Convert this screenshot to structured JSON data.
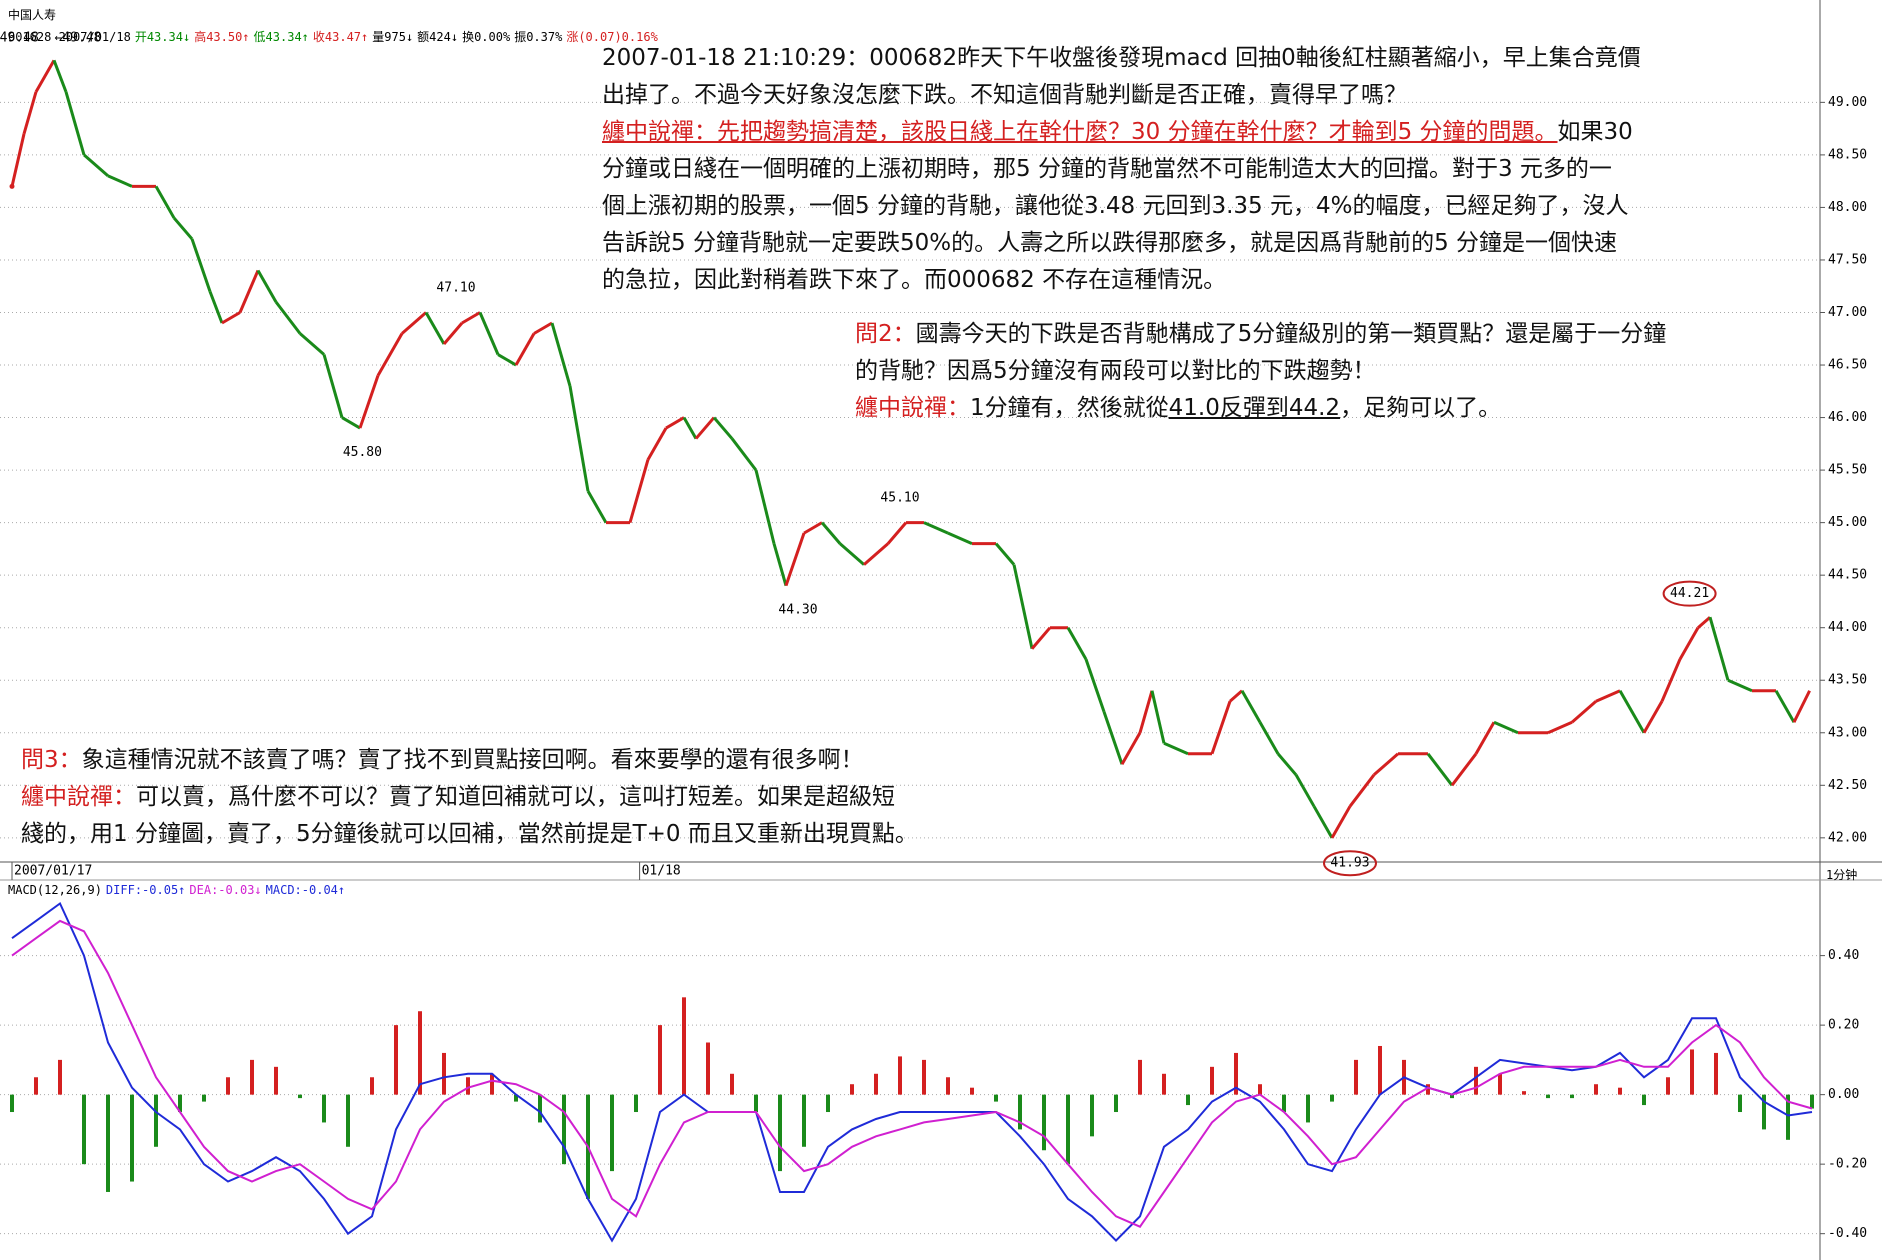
{
  "header": {
    "name": "中国人寿",
    "info": [
      {
        "text": "601628 2007/01/18",
        "color": "#000"
      },
      {
        "text": "开43.34↓",
        "color": "#008800"
      },
      {
        "text": "高43.50↑",
        "color": "#d42020"
      },
      {
        "text": "低43.34↑",
        "color": "#008800"
      },
      {
        "text": "收43.47↑",
        "color": "#d42020"
      },
      {
        "text": "量975↓",
        "color": "#000"
      },
      {
        "text": "额424↓",
        "color": "#000"
      },
      {
        "text": "换0.00%",
        "color": "#000"
      },
      {
        "text": "振0.37%",
        "color": "#000"
      },
      {
        "text": "涨(0.07)0.16%",
        "color": "#d42020"
      }
    ],
    "period": "1分钟"
  },
  "notes": [
    {
      "lines": [
        [
          "2007-01-18 21:10:29：000682昨天下午收盤後發現macd 回抽0軸後紅柱顯著縮小，早上集合竟價"
        ],
        [
          "出掉了。不過今天好象沒怎麼下跌。不知這個背馳判斷是否正確，賣得早了嗎？"
        ],
        [
          "纏中說禪：先把趨勢搞清楚，該股日綫上在幹什麼？30 分鐘在幹什麼？才輪到5 分鐘的問題。",
          "如果30"
        ],
        [
          "分鐘或日綫在一個明確的上漲初期時，那5 分鐘的背馳當然不可能制造太大的回擋。對于3 元多的一"
        ],
        [
          "個上漲初期的股票，一個5 分鐘的背馳，讓他從3.48 元回到3.35 元，4%的幅度，已經足夠了，沒人"
        ],
        [
          "告訴說5 分鐘背馳就一定要跌50%的。人壽之所以跌得那麼多，就是因爲背馳前的5 分鐘是一個快速"
        ],
        [
          "的急拉，因此對稍着跌下來了。而000682 不存在這種情況。"
        ]
      ]
    },
    {
      "lines": [
        [
          "問2：",
          "國壽今天的下跌是否背馳構成了5分鐘級別的第一類買點？還是屬于一分鐘"
        ],
        [
          "的背馳？因爲5分鐘沒有兩段可以對比的下跌趨勢！"
        ],
        [
          "纏中說禪：",
          "1分鐘有，然後就從",
          "41.0反彈到44.2",
          "，足夠可以了。"
        ]
      ]
    },
    {
      "lines": [
        [
          "問3：",
          "象這種情況就不該賣了嗎？賣了找不到買點接回啊。看來要學的還有很多啊！"
        ],
        [
          "纏中說禪：",
          "可以賣，爲什麼不可以？賣了知道回補就可以，這叫打短差。如果是超級短"
        ],
        [
          "綫的，用1 分鐘圖，賣了，5分鐘後就可以回補，當然前提是T+0 而且又重新出現買點。"
        ]
      ]
    }
  ],
  "chart_data": [
    {
      "type": "candle-line",
      "up_color": "#d42020",
      "down_color": "#1a8a1a",
      "x": [
        0,
        10,
        20,
        35,
        45,
        60,
        80,
        100,
        120,
        135,
        150,
        165,
        175,
        190,
        205,
        220,
        240,
        260,
        275,
        290,
        305,
        325,
        345,
        360,
        375,
        390,
        405,
        420,
        435,
        450,
        465,
        480,
        495,
        515,
        530,
        545,
        560,
        570,
        585,
        600,
        620,
        635,
        645,
        660,
        675,
        690,
        710,
        730,
        745,
        760,
        780,
        800,
        820,
        835,
        850,
        865,
        880,
        895,
        910,
        925,
        940,
        950,
        960,
        980,
        1000,
        1015,
        1025,
        1040,
        1055,
        1070,
        1085,
        1100,
        1115,
        1135,
        1155,
        1180,
        1200,
        1220,
        1235,
        1255,
        1280,
        1300,
        1320,
        1340,
        1360,
        1375,
        1390,
        1405,
        1415,
        1430,
        1450,
        1470,
        1485,
        1498
      ],
      "values": [
        48.2,
        48.7,
        49.1,
        49.4,
        49.1,
        48.5,
        48.3,
        48.2,
        48.2,
        47.9,
        47.7,
        47.2,
        46.9,
        47.0,
        47.4,
        47.1,
        46.8,
        46.6,
        46.0,
        45.9,
        46.4,
        46.8,
        47.0,
        46.7,
        46.9,
        47.0,
        46.6,
        46.5,
        46.8,
        46.9,
        46.3,
        45.3,
        45.0,
        45.0,
        45.6,
        45.9,
        46.0,
        45.8,
        46.0,
        45.8,
        45.5,
        44.8,
        44.4,
        44.9,
        45.0,
        44.8,
        44.6,
        44.8,
        45.0,
        45.0,
        44.9,
        44.8,
        44.8,
        44.6,
        43.8,
        44.0,
        44.0,
        43.7,
        43.2,
        42.7,
        43.0,
        43.4,
        42.9,
        42.8,
        42.8,
        43.3,
        43.4,
        43.1,
        42.8,
        42.6,
        42.3,
        42.0,
        42.3,
        42.6,
        42.8,
        42.8,
        42.5,
        42.8,
        43.1,
        43.0,
        43.0,
        43.1,
        43.3,
        43.4,
        43.0,
        43.3,
        43.7,
        44.0,
        44.1,
        43.5,
        43.4,
        43.4,
        43.1,
        43.4
      ],
      "xlim": [
        0,
        1500
      ],
      "ylim": [
        41.77,
        49.86
      ],
      "xticks": [
        {
          "value": 0,
          "label": "2007/01/17"
        },
        {
          "value": 523,
          "label": "01/18"
        }
      ],
      "yticks": [
        {
          "value": 42,
          "label": "42.00"
        },
        {
          "value": 42.5,
          "label": "42.50"
        },
        {
          "value": 43,
          "label": "43.00"
        },
        {
          "value": 43.5,
          "label": "43.50"
        },
        {
          "value": 44,
          "label": "44.00"
        },
        {
          "value": 44.5,
          "label": "44.50"
        },
        {
          "value": 45,
          "label": "45.00"
        },
        {
          "value": 45.5,
          "label": "45.50"
        },
        {
          "value": 46,
          "label": "46.00"
        },
        {
          "value": 46.5,
          "label": "46.50"
        },
        {
          "value": 47,
          "label": "47.00"
        },
        {
          "value": 47.5,
          "label": "47.50"
        },
        {
          "value": 48,
          "label": "48.00"
        },
        {
          "value": 48.5,
          "label": "48.50"
        },
        {
          "value": 49,
          "label": "49.00"
        }
      ],
      "grid": true,
      "price_labels": [
        {
          "x": 6,
          "value": 49.48
        },
        {
          "x": 55,
          "value": 49.48,
          "label": "←49.48"
        },
        {
          "x": 370,
          "value": 47.1,
          "label": "47.10"
        },
        {
          "x": 292,
          "value": 45.8,
          "label": "45.80"
        },
        {
          "x": 740,
          "value": 45.1,
          "label": "45.10"
        },
        {
          "x": 655,
          "value": 44.3,
          "label": "44.30"
        },
        {
          "x": 1398,
          "value": 44.21,
          "circled": true
        },
        {
          "x": 1115,
          "value": 41.93,
          "circled": true
        }
      ]
    },
    {
      "type": "macd",
      "title_parts": [
        {
          "text": "MACD(12,26,9)",
          "color": "#000"
        },
        {
          "text": "DIFF:-0.05↑",
          "color": "#1f2bd8"
        },
        {
          "text": "DEA:-0.03↓",
          "color": "#d020d0"
        },
        {
          "text": "MACD:-0.04↑",
          "color": "#1f2bd8"
        }
      ],
      "x": [
        0,
        20,
        40,
        60,
        80,
        100,
        120,
        140,
        160,
        180,
        200,
        220,
        240,
        260,
        280,
        300,
        320,
        340,
        360,
        380,
        400,
        420,
        440,
        460,
        480,
        500,
        520,
        540,
        560,
        580,
        600,
        620,
        640,
        660,
        680,
        700,
        720,
        740,
        760,
        780,
        800,
        820,
        840,
        860,
        880,
        900,
        920,
        940,
        960,
        980,
        1000,
        1020,
        1040,
        1060,
        1080,
        1100,
        1120,
        1140,
        1160,
        1180,
        1200,
        1220,
        1240,
        1260,
        1280,
        1300,
        1320,
        1340,
        1360,
        1380,
        1400,
        1420,
        1440,
        1460,
        1480,
        1500
      ],
      "xlim": [
        0,
        1500
      ],
      "ylim": [
        -0.47,
        0.56
      ],
      "yticks": [
        {
          "value": 0.4,
          "label": "0.40"
        },
        {
          "value": 0.2,
          "label": "0.20"
        },
        {
          "value": 0,
          "label": "0.00"
        },
        {
          "value": -0.2,
          "label": "-0.20"
        },
        {
          "value": -0.4,
          "label": "-0.40"
        }
      ],
      "up_color": "#d42020",
      "down_color": "#1a8a1a",
      "series": [
        {
          "name": "MACD",
          "type": "bar",
          "values": [
            -0.05,
            0.05,
            0.1,
            -0.2,
            -0.28,
            -0.25,
            -0.15,
            -0.05,
            -0.02,
            0.05,
            0.1,
            0.08,
            -0.01,
            -0.08,
            -0.15,
            0.05,
            0.2,
            0.24,
            0.12,
            0.05,
            0.06,
            -0.02,
            -0.08,
            -0.2,
            -0.3,
            -0.22,
            -0.05,
            0.2,
            0.28,
            0.15,
            0.06,
            -0.05,
            -0.22,
            -0.15,
            -0.05,
            0.03,
            0.06,
            0.11,
            0.1,
            0.05,
            0.02,
            -0.02,
            -0.1,
            -0.16,
            -0.2,
            -0.12,
            -0.05,
            0.1,
            0.06,
            -0.03,
            0.08,
            0.12,
            0.03,
            -0.05,
            -0.08,
            -0.02,
            0.1,
            0.14,
            0.1,
            0.03,
            -0.01,
            0.08,
            0.06,
            0.01,
            -0.01,
            -0.01,
            0.03,
            0.02,
            -0.03,
            0.05,
            0.13,
            0.12,
            -0.05,
            -0.1,
            -0.13,
            -0.04
          ]
        },
        {
          "name": "DIFF",
          "type": "line",
          "color": "#1f2bd8",
          "values": [
            0.45,
            0.5,
            0.55,
            0.4,
            0.15,
            0.02,
            -0.05,
            -0.1,
            -0.2,
            -0.25,
            -0.22,
            -0.18,
            -0.22,
            -0.3,
            -0.4,
            -0.35,
            -0.1,
            0.03,
            0.05,
            0.06,
            0.06,
            0.0,
            -0.05,
            -0.15,
            -0.3,
            -0.42,
            -0.3,
            -0.05,
            0.0,
            -0.05,
            -0.05,
            -0.05,
            -0.28,
            -0.28,
            -0.15,
            -0.1,
            -0.07,
            -0.05,
            -0.05,
            -0.05,
            -0.05,
            -0.05,
            -0.12,
            -0.2,
            -0.3,
            -0.35,
            -0.42,
            -0.35,
            -0.15,
            -0.1,
            -0.02,
            0.02,
            -0.02,
            -0.1,
            -0.2,
            -0.22,
            -0.1,
            0.0,
            0.05,
            0.02,
            0.0,
            0.05,
            0.1,
            0.09,
            0.08,
            0.07,
            0.08,
            0.12,
            0.05,
            0.1,
            0.22,
            0.22,
            0.05,
            -0.02,
            -0.06,
            -0.05
          ]
        },
        {
          "name": "DEA",
          "type": "line",
          "color": "#d020d0",
          "values": [
            0.4,
            0.45,
            0.5,
            0.47,
            0.35,
            0.2,
            0.05,
            -0.05,
            -0.15,
            -0.22,
            -0.25,
            -0.22,
            -0.2,
            -0.25,
            -0.3,
            -0.33,
            -0.25,
            -0.1,
            -0.02,
            0.02,
            0.04,
            0.03,
            0.0,
            -0.05,
            -0.15,
            -0.3,
            -0.35,
            -0.2,
            -0.08,
            -0.05,
            -0.05,
            -0.05,
            -0.15,
            -0.22,
            -0.2,
            -0.15,
            -0.12,
            -0.1,
            -0.08,
            -0.07,
            -0.06,
            -0.05,
            -0.08,
            -0.12,
            -0.2,
            -0.28,
            -0.35,
            -0.38,
            -0.28,
            -0.18,
            -0.08,
            -0.02,
            0.0,
            -0.05,
            -0.12,
            -0.2,
            -0.18,
            -0.1,
            -0.02,
            0.02,
            0.0,
            0.02,
            0.06,
            0.08,
            0.08,
            0.08,
            0.08,
            0.1,
            0.08,
            0.08,
            0.15,
            0.2,
            0.15,
            0.05,
            -0.02,
            -0.04
          ]
        }
      ]
    }
  ]
}
